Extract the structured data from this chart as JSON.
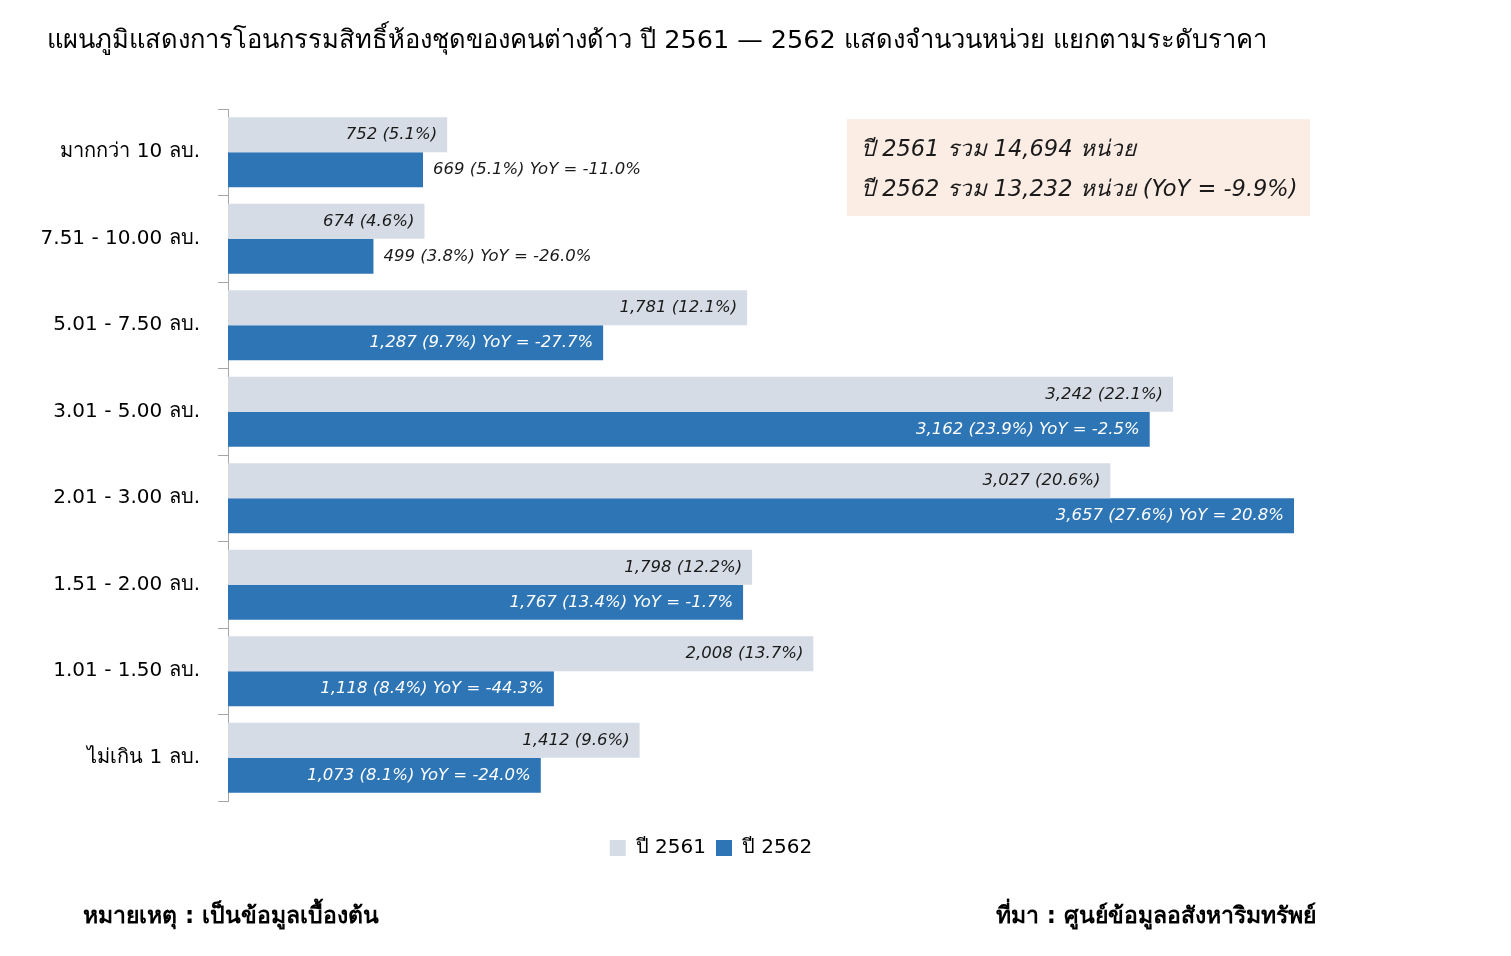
{
  "chart_data": {
    "type": "bar",
    "orientation": "horizontal",
    "title": "แผนภูมิแสดงการโอนกรรมสิทธิ์ห้องชุดของคนต่างด้าว ปี 2561 — 2562 แสดงจำนวนหน่วย แยกตามระดับราคา",
    "categories": [
      "มากกว่า 10 ลบ.",
      "7.51 - 10.00 ลบ.",
      "5.01 - 7.50 ลบ.",
      "3.01 - 5.00 ลบ.",
      "2.01 - 3.00 ลบ.",
      "1.51 - 2.00 ลบ.",
      "1.01 - 1.50 ลบ.",
      "ไม่เกิน 1 ลบ."
    ],
    "series": [
      {
        "name": "ปี 2561",
        "color": "#d6dce5",
        "values": [
          752,
          674,
          1781,
          3242,
          3027,
          1798,
          2008,
          1412
        ],
        "value_labels": [
          "752 (5.1%)",
          "674 (4.6%)",
          "1,781 (12.1%)",
          "3,242 (22.1%)",
          "3,027 (20.6%)",
          "1,798 (12.2%)",
          "2,008 (13.7%)",
          "1,412 (9.6%)"
        ]
      },
      {
        "name": "ปี 2562",
        "color": "#2e75b6",
        "values": [
          669,
          499,
          1287,
          3162,
          3657,
          1767,
          1118,
          1073
        ],
        "value_labels": [
          "669 (5.1%) YoY = -11.0%",
          "499 (3.8%) YoY = -26.0%",
          "1,287 (9.7%) YoY = -27.7%",
          "3,162 (23.9%) YoY = -2.5%",
          "3,657 (27.6%) YoY = 20.8%",
          "1,767 (13.4%) YoY = -1.7%",
          "1,118 (8.4%) YoY = -44.3%",
          "1,073 (8.1%) YoY = -24.0%"
        ]
      }
    ],
    "tick_labels": "y",
    "legend": "bottom",
    "annotations": [
      "ปี 2561 รวม 14,694 หน่วย",
      "ปี 2562 รวม 13,232 หน่วย (YoY = -9.9%)",
      "หมายเหตุ : เป็นข้อมูลเบื้องต้น",
      "ที่มา : ศูนย์ข้อมูลอสังหาริมทรัพย์"
    ]
  }
}
